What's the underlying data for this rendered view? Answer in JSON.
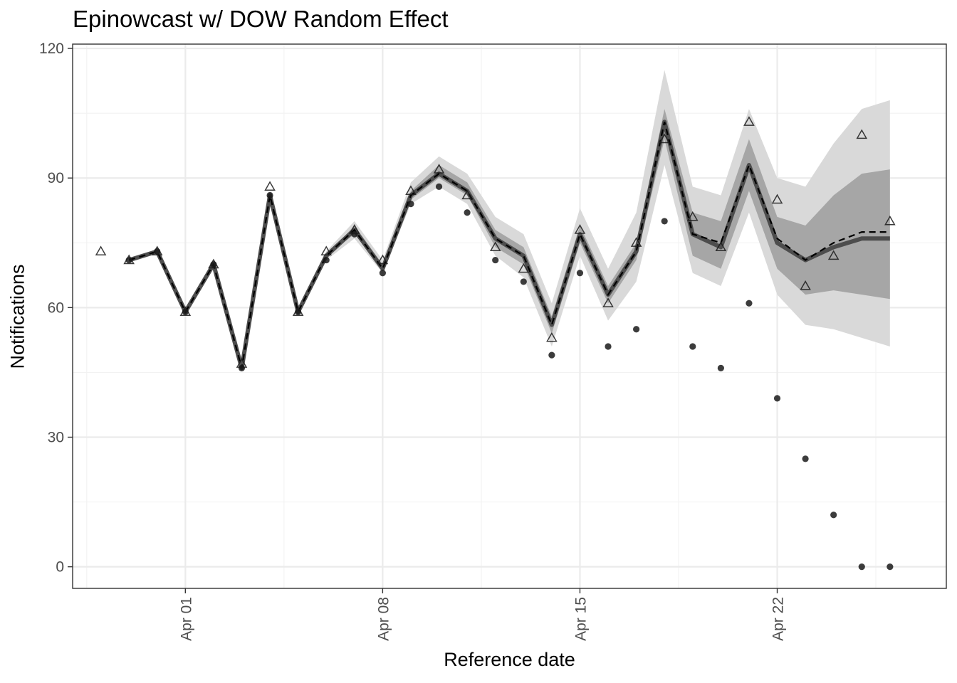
{
  "chart_data": {
    "type": "line",
    "title": "Epinowcast w/ DOW Random Effect",
    "xlabel": "Reference date",
    "ylabel": "Notifications",
    "x_ticks": [
      "2024-04-01",
      "2024-04-08",
      "2024-04-15",
      "2024-04-22"
    ],
    "x_tick_labels": [
      "Apr 01",
      "Apr 08",
      "Apr 15",
      "Apr 22"
    ],
    "xlim": [
      "2024-03-28",
      "2024-04-28"
    ],
    "y_ticks": [
      0,
      30,
      60,
      90,
      120
    ],
    "ylim": [
      -5,
      121
    ],
    "grid": true,
    "legend": "none",
    "colors": {
      "median_line": "#4d4d4d",
      "mean_line": "#000000",
      "ci90": "#d9d9d9",
      "ci50": "#a6a6a6",
      "points": "#1a1a1a",
      "gridline": "#ebebeb"
    },
    "series": [
      {
        "marker": "triangle-open",
        "points": [
          [
            "2024-03-29",
            73
          ],
          [
            "2024-03-30",
            71
          ],
          [
            "2024-03-31",
            73
          ],
          [
            "2024-04-01",
            59
          ],
          [
            "2024-04-02",
            70
          ],
          [
            "2024-04-03",
            47
          ],
          [
            "2024-04-04",
            88
          ],
          [
            "2024-04-05",
            59
          ],
          [
            "2024-04-06",
            73
          ],
          [
            "2024-04-07",
            78
          ],
          [
            "2024-04-08",
            71
          ],
          [
            "2024-04-09",
            87
          ],
          [
            "2024-04-10",
            92
          ],
          [
            "2024-04-11",
            86
          ],
          [
            "2024-04-12",
            74
          ],
          [
            "2024-04-13",
            69
          ],
          [
            "2024-04-14",
            53
          ],
          [
            "2024-04-15",
            78
          ],
          [
            "2024-04-16",
            61
          ],
          [
            "2024-04-17",
            75
          ],
          [
            "2024-04-18",
            99
          ],
          [
            "2024-04-19",
            81
          ],
          [
            "2024-04-20",
            74
          ],
          [
            "2024-04-21",
            103
          ],
          [
            "2024-04-22",
            85
          ],
          [
            "2024-04-23",
            65
          ],
          [
            "2024-04-24",
            72
          ],
          [
            "2024-04-25",
            100
          ],
          [
            "2024-04-26",
            80
          ]
        ]
      },
      {
        "marker": "filled-circle",
        "points": [
          [
            "2024-03-30",
            71
          ],
          [
            "2024-03-31",
            73
          ],
          [
            "2024-04-01",
            59
          ],
          [
            "2024-04-02",
            70
          ],
          [
            "2024-04-03",
            46
          ],
          [
            "2024-04-04",
            86
          ],
          [
            "2024-04-05",
            59
          ],
          [
            "2024-04-06",
            71
          ],
          [
            "2024-04-07",
            77
          ],
          [
            "2024-04-08",
            68
          ],
          [
            "2024-04-09",
            84
          ],
          [
            "2024-04-10",
            88
          ],
          [
            "2024-04-11",
            82
          ],
          [
            "2024-04-12",
            71
          ],
          [
            "2024-04-13",
            66
          ],
          [
            "2024-04-14",
            49
          ],
          [
            "2024-04-15",
            68
          ],
          [
            "2024-04-16",
            51
          ],
          [
            "2024-04-17",
            55
          ],
          [
            "2024-04-18",
            80
          ],
          [
            "2024-04-19",
            51
          ],
          [
            "2024-04-20",
            46
          ],
          [
            "2024-04-21",
            61
          ],
          [
            "2024-04-22",
            39
          ],
          [
            "2024-04-23",
            25
          ],
          [
            "2024-04-24",
            12
          ],
          [
            "2024-04-25",
            0
          ],
          [
            "2024-04-26",
            0
          ]
        ]
      }
    ],
    "nowcast": {
      "dates": [
        "2024-03-30",
        "2024-03-31",
        "2024-04-01",
        "2024-04-02",
        "2024-04-03",
        "2024-04-04",
        "2024-04-05",
        "2024-04-06",
        "2024-04-07",
        "2024-04-08",
        "2024-04-09",
        "2024-04-10",
        "2024-04-11",
        "2024-04-12",
        "2024-04-13",
        "2024-04-14",
        "2024-04-15",
        "2024-04-16",
        "2024-04-17",
        "2024-04-18",
        "2024-04-19",
        "2024-04-20",
        "2024-04-21",
        "2024-04-22",
        "2024-04-23",
        "2024-04-24",
        "2024-04-25",
        "2024-04-26"
      ],
      "median": [
        71,
        73,
        59,
        70,
        46,
        86,
        59,
        72,
        78,
        69,
        86,
        91,
        87,
        76,
        72,
        56,
        77,
        63,
        73,
        103,
        77,
        74,
        93,
        75,
        71,
        74,
        76,
        76
      ],
      "mean": [
        71,
        73,
        59,
        70,
        46,
        86,
        59,
        72,
        78,
        69,
        86,
        91,
        87,
        76,
        72,
        56,
        77,
        63,
        73,
        103,
        77,
        75,
        93,
        76,
        71,
        75,
        77.5,
        77.5
      ],
      "ci50_lower": [
        71,
        73,
        59,
        70,
        46,
        86,
        59,
        72,
        77,
        69,
        85,
        90,
        86,
        74,
        70,
        54,
        75,
        61,
        71,
        99,
        72,
        69,
        87,
        69,
        63,
        64,
        63,
        62
      ],
      "ci50_upper": [
        71,
        73,
        59,
        70,
        46,
        86,
        59,
        72,
        79,
        70,
        87,
        93,
        89,
        78,
        74,
        58,
        79,
        65,
        75,
        106,
        82,
        80,
        99,
        81,
        79,
        86,
        91,
        92
      ],
      "ci90_lower": [
        71,
        73,
        59,
        70,
        46,
        86,
        59,
        71,
        76,
        68,
        84,
        88,
        84,
        72,
        67,
        51,
        72,
        57,
        66,
        93,
        68,
        65,
        82,
        63,
        56,
        55,
        53,
        51
      ],
      "ci90_upper": [
        71,
        73,
        59,
        70,
        46,
        86,
        59,
        73,
        80,
        71,
        89,
        95,
        91,
        81,
        77,
        61,
        83,
        69,
        82,
        115,
        88,
        86,
        106,
        90,
        88,
        98,
        106,
        108
      ]
    }
  }
}
